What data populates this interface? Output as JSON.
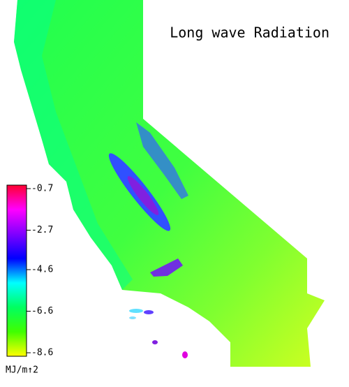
{
  "title": "Long wave Radiation",
  "colorbar": {
    "label": "MJ/m↑2",
    "lim": [
      -0.7,
      -8.6
    ],
    "ticks": [
      -0.7,
      -2.7,
      -4.6,
      -6.6,
      -8.6
    ],
    "colors": [
      "#ff0030",
      "#ff00ff",
      "#8000ff",
      "#0000ff",
      "#00ffff",
      "#00ff60",
      "#40ff00",
      "#ffff00"
    ]
  }
}
